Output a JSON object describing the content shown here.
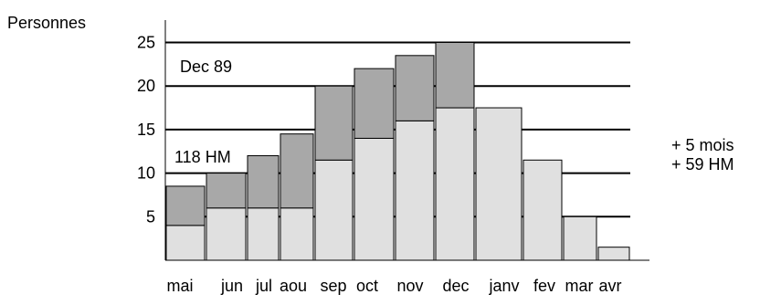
{
  "chart_data": {
    "type": "bar",
    "ylabel": "Personnes",
    "ylim": [
      0,
      27.5
    ],
    "yticks": [
      5,
      10,
      15,
      20,
      25
    ],
    "grid": true,
    "colors": {
      "light": "#e0e0e0",
      "dark": "#a8a8a8",
      "outline": "#000000"
    },
    "categories": [
      "mai",
      "jun",
      "jul",
      "aou",
      "sep",
      "oct",
      "nov",
      "dec",
      "janv",
      "fev",
      "mar",
      "avr"
    ],
    "series": [
      {
        "tone": "light",
        "values": [
          4,
          6,
          6,
          6,
          11.5,
          14,
          16,
          17.5,
          17.5,
          11.5,
          5,
          1.5
        ]
      },
      {
        "tone": "dark",
        "values": [
          4.5,
          4,
          6,
          8.5,
          8.5,
          8,
          7.5,
          7.5,
          0,
          0,
          0,
          0
        ]
      }
    ],
    "annotations": {
      "period": "Dec 89",
      "base": "118 HM",
      "extension_months": "+ 5 mois",
      "extension_hm": "+ 59 HM"
    }
  }
}
